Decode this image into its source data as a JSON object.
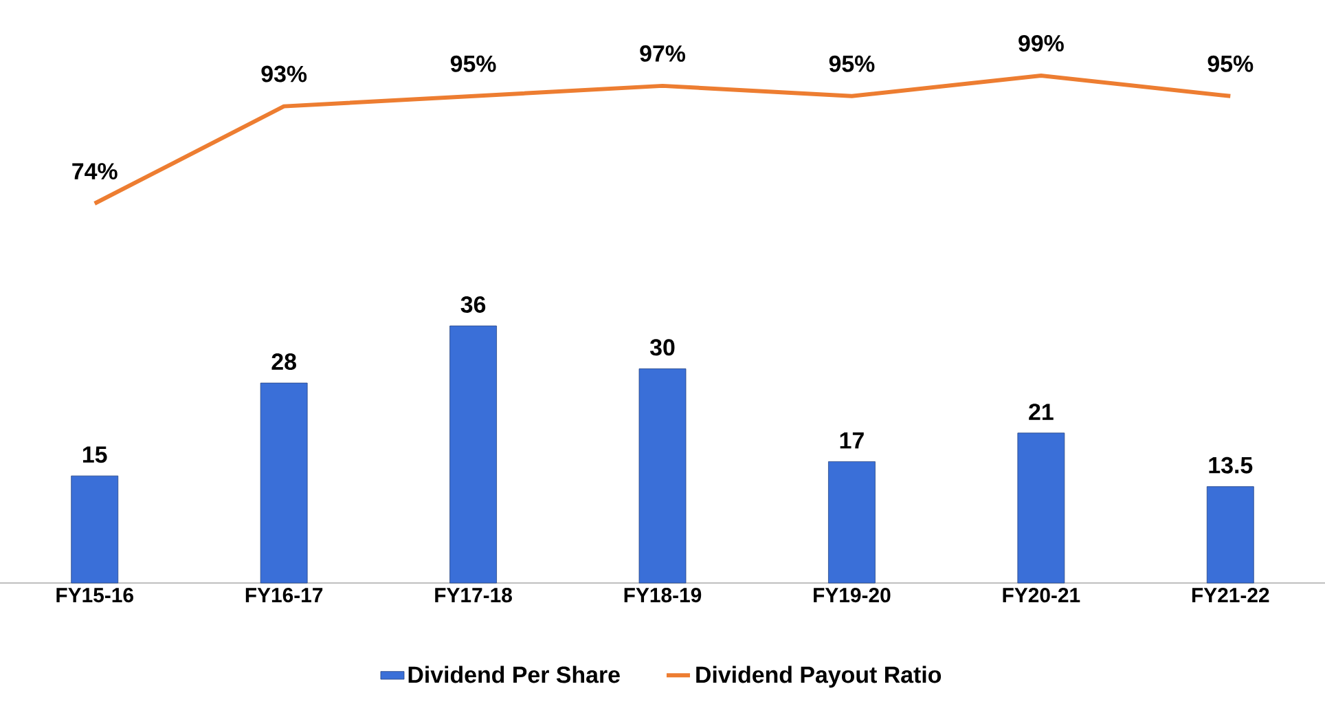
{
  "chart_data": [
    {
      "type": "line",
      "categories": [
        null,
        null,
        null,
        null,
        null,
        null,
        null
      ],
      "tick_labels": false,
      "series": [
        {
          "name": "Dividend Payout Ratio",
          "color": "#ed7d31",
          "values": [
            74,
            93,
            95,
            97,
            95,
            99,
            95
          ],
          "value_labels": [
            "74%",
            "93%",
            "95%",
            "97%",
            "95%",
            "99%",
            "95%"
          ]
        }
      ]
    },
    {
      "type": "bar",
      "categories": [
        "FY15-16",
        "FY16-17",
        "FY17-18",
        "FY18-19",
        "FY19-20",
        "FY20-21",
        "FY21-22"
      ],
      "tick_labels": "x",
      "series": [
        {
          "name": "Dividend Per Share",
          "color": "#3a6fd8",
          "values": [
            15,
            28,
            36,
            30,
            17,
            21,
            13.5
          ]
        }
      ],
      "ylim": [
        0,
        36
      ],
      "data_labels": true,
      "legend": "bottom"
    }
  ]
}
